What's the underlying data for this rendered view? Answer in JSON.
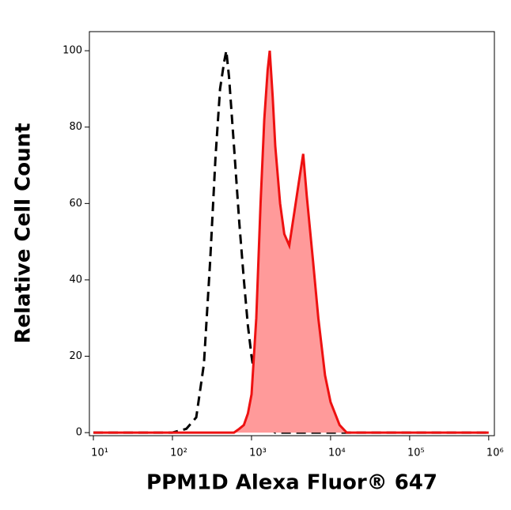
{
  "chart_data": {
    "type": "histogram-overlay",
    "xlabel": "PPM1D Alexa Fluor® 647",
    "ylabel": "Relative Cell Count",
    "xscale": "log",
    "xlim": [
      8.9,
      1180000
    ],
    "ylim": [
      -0.8,
      105
    ],
    "xticks": [
      {
        "value": 10,
        "label": "10¹"
      },
      {
        "value": 100,
        "label": "10²"
      },
      {
        "value": 1000,
        "label": "10³"
      },
      {
        "value": 10000,
        "label": "10⁴"
      },
      {
        "value": 100000,
        "label": "10⁵"
      },
      {
        "value": 1000000,
        "label": "10⁶"
      }
    ],
    "yticks": [
      0,
      20,
      40,
      60,
      80,
      100
    ],
    "x": [
      10,
      50,
      100,
      150,
      200,
      250,
      300,
      350,
      400,
      450,
      480,
      520,
      600,
      700,
      800,
      900,
      1000,
      1150,
      1300,
      1450,
      1600,
      1700,
      1850,
      2000,
      2300,
      2600,
      3000,
      3500,
      4000,
      4500,
      5000,
      6000,
      7000,
      8500,
      10000,
      13000,
      16000,
      100000,
      1000000
    ],
    "series": [
      {
        "color": "#000000",
        "dashed": true,
        "filled": false,
        "values": [
          0,
          0,
          0,
          1,
          4,
          18,
          45,
          72,
          90,
          97,
          100,
          93,
          75,
          55,
          40,
          28,
          20,
          12,
          7,
          4,
          2,
          1,
          0.5,
          0,
          0,
          0,
          0,
          0,
          0,
          0,
          0,
          0,
          0,
          0,
          0,
          0,
          0,
          0,
          0
        ]
      },
      {
        "color": "#ee1111",
        "fill": "#ff9a9a",
        "dashed": false,
        "filled": true,
        "values": [
          0,
          0,
          0,
          0,
          0,
          0,
          0,
          0,
          0,
          0,
          0,
          0,
          0,
          1,
          2,
          5,
          10,
          30,
          60,
          82,
          95,
          100,
          88,
          75,
          60,
          52,
          49,
          58,
          66,
          73,
          62,
          45,
          30,
          15,
          8,
          2,
          0,
          0,
          0
        ]
      }
    ]
  }
}
